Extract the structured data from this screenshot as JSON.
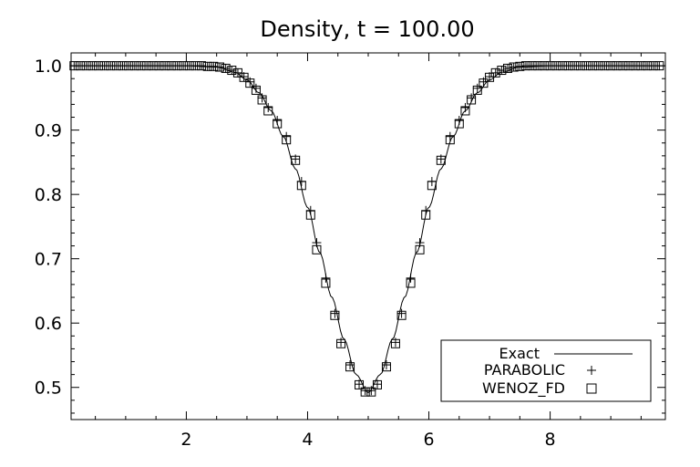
{
  "chart_data": {
    "type": "line",
    "title": "Density, t = 100.00",
    "xlabel": "",
    "ylabel": "",
    "xlim": [
      0.1,
      9.9
    ],
    "ylim": [
      0.45,
      1.02
    ],
    "x_ticks": [
      2,
      4,
      6,
      8
    ],
    "x_tick_labels": [
      "2",
      "4",
      "6",
      "8"
    ],
    "y_ticks": [
      0.5,
      0.6,
      0.7,
      0.8,
      0.9,
      1.0
    ],
    "y_tick_labels": [
      "0.5",
      "0.6",
      "0.7",
      "0.8",
      "0.9",
      "1.0"
    ],
    "grid": false,
    "legend_position": "bottom-right",
    "series": [
      {
        "name": "Exact",
        "style": "line",
        "color": "#000000",
        "x": [
          0.1,
          2.0,
          2.5,
          2.8,
          3.0,
          3.2,
          3.4,
          3.6,
          3.8,
          4.0,
          4.2,
          4.4,
          4.6,
          4.8,
          5.0,
          5.2,
          5.4,
          5.6,
          5.8,
          6.0,
          6.2,
          6.4,
          6.6,
          6.8,
          7.0,
          7.2,
          7.5,
          8.0,
          9.9
        ],
        "y": [
          1.0,
          1.0,
          0.998,
          0.99,
          0.978,
          0.958,
          0.93,
          0.89,
          0.84,
          0.78,
          0.71,
          0.64,
          0.575,
          0.52,
          0.492,
          0.52,
          0.575,
          0.64,
          0.71,
          0.78,
          0.84,
          0.89,
          0.93,
          0.958,
          0.978,
          0.99,
          0.998,
          1.0,
          1.0
        ]
      },
      {
        "name": "PARABOLIC",
        "style": "plus",
        "color": "#000000",
        "x": [
          0.15,
          0.25,
          0.35,
          0.45,
          0.55,
          0.65,
          0.75,
          0.85,
          0.95,
          1.05,
          1.15,
          1.25,
          1.35,
          1.45,
          1.55,
          1.65,
          1.75,
          1.85,
          1.95,
          2.05,
          2.15,
          2.25,
          2.35,
          2.45,
          2.55,
          2.65,
          2.75,
          2.85,
          2.95,
          3.05,
          3.15,
          3.25,
          3.35,
          3.5,
          3.65,
          3.8,
          3.9,
          4.05,
          4.15,
          4.3,
          4.45,
          4.55,
          4.7,
          4.85,
          4.95,
          5.05,
          5.15,
          5.3,
          5.45,
          5.55,
          5.7,
          5.85,
          5.95,
          6.05,
          6.2,
          6.35,
          6.5,
          6.6,
          6.7,
          6.8,
          6.9,
          7.0,
          7.1,
          7.2,
          7.3,
          7.4,
          7.5,
          7.6,
          7.7,
          7.8,
          7.9,
          8.0,
          8.1,
          8.2,
          8.3,
          8.4,
          8.5,
          8.6,
          8.7,
          8.8,
          8.9,
          9.0,
          9.1,
          9.2,
          9.3,
          9.4,
          9.5,
          9.6,
          9.7,
          9.8
        ],
        "y": [
          1.0,
          1.0,
          1.0,
          1.0,
          1.0,
          1.0,
          1.0,
          1.0,
          1.0,
          1.0,
          1.0,
          1.0,
          1.0,
          1.0,
          1.0,
          1.0,
          1.0,
          1.0,
          1.0,
          1.0,
          1.0,
          1.0,
          0.999,
          0.999,
          0.998,
          0.996,
          0.993,
          0.989,
          0.983,
          0.975,
          0.965,
          0.95,
          0.935,
          0.915,
          0.89,
          0.855,
          0.82,
          0.775,
          0.725,
          0.67,
          0.615,
          0.57,
          0.535,
          0.505,
          0.495,
          0.495,
          0.505,
          0.535,
          0.57,
          0.615,
          0.67,
          0.725,
          0.775,
          0.82,
          0.855,
          0.89,
          0.915,
          0.935,
          0.95,
          0.965,
          0.975,
          0.983,
          0.989,
          0.993,
          0.996,
          0.998,
          0.999,
          1.0,
          1.0,
          1.0,
          1.0,
          1.0,
          1.0,
          1.0,
          1.0,
          1.0,
          1.0,
          1.0,
          1.0,
          1.0,
          1.0,
          1.0,
          1.0,
          1.0,
          1.0,
          1.0,
          1.0,
          1.0,
          1.0,
          1.0
        ]
      },
      {
        "name": "WENOZ_FD",
        "style": "square",
        "color": "#000000",
        "x": [
          0.15,
          0.25,
          0.35,
          0.45,
          0.55,
          0.65,
          0.75,
          0.85,
          0.95,
          1.05,
          1.15,
          1.25,
          1.35,
          1.45,
          1.55,
          1.65,
          1.75,
          1.85,
          1.95,
          2.05,
          2.15,
          2.25,
          2.35,
          2.45,
          2.55,
          2.65,
          2.75,
          2.85,
          2.95,
          3.05,
          3.15,
          3.25,
          3.35,
          3.5,
          3.65,
          3.8,
          3.9,
          4.05,
          4.15,
          4.3,
          4.45,
          4.55,
          4.7,
          4.85,
          4.95,
          5.05,
          5.15,
          5.3,
          5.45,
          5.55,
          5.7,
          5.85,
          5.95,
          6.05,
          6.2,
          6.35,
          6.5,
          6.6,
          6.7,
          6.8,
          6.9,
          7.0,
          7.1,
          7.2,
          7.3,
          7.4,
          7.5,
          7.6,
          7.7,
          7.8,
          7.9,
          8.0,
          8.1,
          8.2,
          8.3,
          8.4,
          8.5,
          8.6,
          8.7,
          8.8,
          8.9,
          9.0,
          9.1,
          9.2,
          9.3,
          9.4,
          9.5,
          9.6,
          9.7,
          9.8
        ],
        "y": [
          1.0,
          1.0,
          1.0,
          1.0,
          1.0,
          1.0,
          1.0,
          1.0,
          1.0,
          1.0,
          1.0,
          1.0,
          1.0,
          1.0,
          1.0,
          1.0,
          1.0,
          1.0,
          1.0,
          1.0,
          1.0,
          1.0,
          0.999,
          0.999,
          0.998,
          0.996,
          0.993,
          0.989,
          0.982,
          0.973,
          0.962,
          0.947,
          0.93,
          0.91,
          0.885,
          0.853,
          0.814,
          0.768,
          0.714,
          0.662,
          0.612,
          0.568,
          0.532,
          0.504,
          0.493,
          0.493,
          0.504,
          0.532,
          0.568,
          0.612,
          0.662,
          0.714,
          0.768,
          0.814,
          0.853,
          0.885,
          0.91,
          0.93,
          0.947,
          0.962,
          0.973,
          0.982,
          0.989,
          0.993,
          0.996,
          0.998,
          0.999,
          1.0,
          1.0,
          1.0,
          1.0,
          1.0,
          1.0,
          1.0,
          1.0,
          1.0,
          1.0,
          1.0,
          1.0,
          1.0,
          1.0,
          1.0,
          1.0,
          1.0,
          1.0,
          1.0,
          1.0,
          1.0,
          1.0,
          1.0
        ]
      }
    ]
  }
}
